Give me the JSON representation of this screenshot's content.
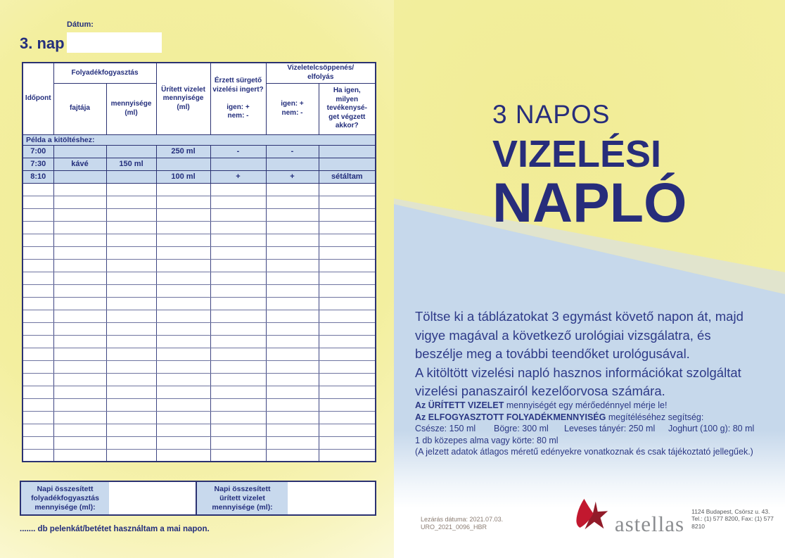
{
  "colors": {
    "navy": "#232e7c",
    "yellow": "#f3ee9e",
    "cell_blue": "#c8d9ed",
    "band_blue": "#c6d8eb",
    "band_blend": "#e1e4cd",
    "logo_red": "#c2182f",
    "logo_dark_red": "#921b29",
    "logo_gray": "#8b8d90"
  },
  "left": {
    "date_label": "Dátum:",
    "day_title": "3. nap",
    "table": {
      "headers": {
        "idopont": "Időpont",
        "folyadek": "Folyadékfogyasztás",
        "fajtaja": "fajtája",
        "mennyisege": "mennyisége\n(ml)",
        "uritett": "Ürített vizelet\nmennyisége\n(ml)",
        "erzett": "Érzett sürgető\nvizelési ingert?\n\nigen: +\nnem: -",
        "vizeletel": "Vizeletelcsöppenés/\nelfolyás",
        "igen_nem": "igen: +\nnem: -",
        "ha_igen": "Ha igen,\nmilyen\ntevékenysé-\nget végzett\nakkor?"
      },
      "example_banner": "Példa a kitöltéshez:",
      "example_rows": [
        [
          "7:00",
          "",
          "",
          "250 ml",
          "-",
          "-",
          ""
        ],
        [
          "7:30",
          "kávé",
          "150 ml",
          "",
          "",
          "",
          ""
        ],
        [
          "8:10",
          "",
          "",
          "100 ml",
          "+",
          "+",
          "sétáltam"
        ]
      ],
      "empty_row_count": 22
    },
    "summary": {
      "fluid_label": "Napi összesített\nfolyadékfogyasztás\nmennyisége (ml):",
      "urine_label": "Napi összesített\nürített vizelet\nmennyisége (ml):"
    },
    "diaper_line": "....... db pelenkát/betétet használtam a mai napon."
  },
  "right": {
    "title_small": "3 NAPOS",
    "title_line1": "VIZELÉSI",
    "title_line2": "NAPLÓ",
    "paragraph": "Töltse ki a táblázatokat 3 egymást követő napon át, majd vigye magával a következő urológiai vizsgálatra, és beszélje meg a további teendőket urológusával.\nA kitöltött vizelési napló hasznos információkat szolgáltat vizelési panaszairól kezelőorvosa számára.",
    "help": {
      "line1_bold": "Az ÜRÍTETT VIZELET",
      "line1_rest": " mennyiségét egy mérőedénnyel mérje le!",
      "line2_bold": "Az ELFOGYASZTOTT FOLYADÉKMENNYISÉG",
      "line2_rest": " megítéléséhez segítség:",
      "measures": [
        "Csésze: 150 ml",
        "Bögre: 300 ml",
        "Leveses tányér: 250 ml",
        "Joghurt (100 g): 80 ml"
      ],
      "line4": "1 db közepes alma vagy körte: 80 ml",
      "line5": "(A jelzett adatok átlagos méretű edényekre vonatkoznak és csak tájékoztató jellegűek.)"
    },
    "footer": {
      "closing_date": "Lezárás dátuma: 2021.07.03.",
      "code": "URO_2021_0096_HBR",
      "logo_text": "astellas",
      "address_line1": "1124 Budapest, Csörsz u. 43.",
      "address_line2": "Tel.: (1) 577 8200, Fax: (1) 577 8210"
    }
  }
}
